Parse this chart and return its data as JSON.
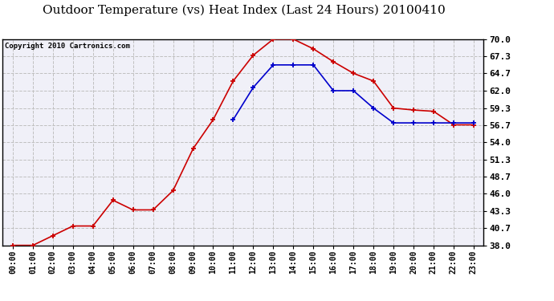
{
  "title": "Outdoor Temperature (vs) Heat Index (Last 24 Hours) 20100410",
  "copyright": "Copyright 2010 Cartronics.com",
  "x_labels": [
    "00:00",
    "01:00",
    "02:00",
    "03:00",
    "04:00",
    "05:00",
    "06:00",
    "07:00",
    "08:00",
    "09:00",
    "10:00",
    "11:00",
    "12:00",
    "13:00",
    "14:00",
    "15:00",
    "16:00",
    "17:00",
    "18:00",
    "19:00",
    "20:00",
    "21:00",
    "22:00",
    "23:00"
  ],
  "red_temp": [
    38.0,
    38.0,
    39.5,
    41.0,
    41.0,
    45.0,
    43.5,
    43.5,
    46.5,
    53.0,
    57.5,
    63.5,
    67.5,
    70.0,
    70.0,
    68.5,
    66.5,
    64.7,
    63.5,
    59.3,
    59.0,
    58.8,
    56.7,
    56.7
  ],
  "blue_heat": [
    null,
    null,
    null,
    null,
    null,
    null,
    null,
    null,
    null,
    null,
    null,
    57.5,
    62.5,
    66.0,
    66.0,
    66.0,
    62.0,
    62.0,
    59.3,
    57.0,
    57.0,
    57.0,
    57.0,
    57.0
  ],
  "ylim_min": 38.0,
  "ylim_max": 70.0,
  "yticks": [
    38.0,
    40.7,
    43.3,
    46.0,
    48.7,
    51.3,
    54.0,
    56.7,
    59.3,
    62.0,
    64.7,
    67.3,
    70.0
  ],
  "red_color": "#cc0000",
  "blue_color": "#0000cc",
  "bg_color": "#ffffff",
  "plot_bg_color": "#f0f0f8",
  "grid_color": "#c0c0c0",
  "title_fontsize": 11,
  "copyright_fontsize": 6.5,
  "tick_fontsize": 7,
  "ytick_fontsize": 8
}
